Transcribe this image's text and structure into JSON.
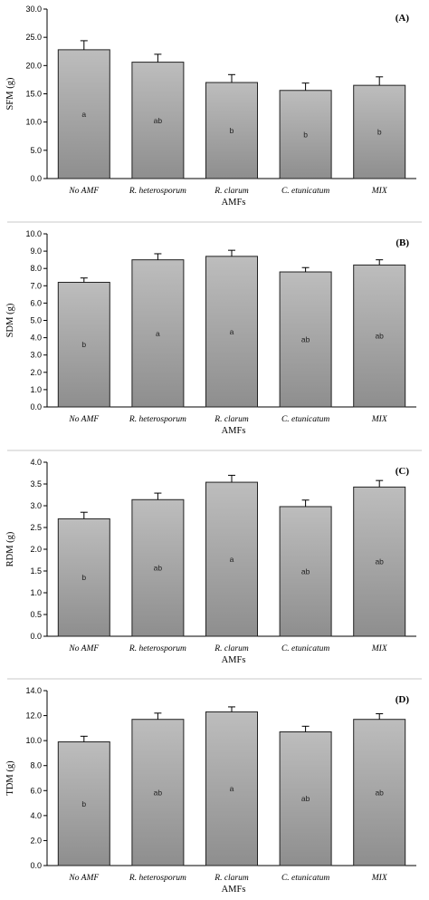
{
  "colors": {
    "bar_top": "#bdbdbd",
    "bar_bottom": "#8e8e8e",
    "axis": "#000000",
    "separator": "#c8c8c8"
  },
  "chart_data": [
    {
      "type": "bar",
      "panel_label": "(A)",
      "ylabel": "SFM (g)",
      "xlabel": "AMFs",
      "categories": [
        "No AMF",
        "R. heterosporum",
        "R. clarum",
        "C. etunicatum",
        "MIX"
      ],
      "values": [
        22.8,
        20.6,
        17.0,
        15.6,
        16.5
      ],
      "errors": [
        1.6,
        1.4,
        1.4,
        1.3,
        1.5
      ],
      "letters": [
        "a",
        "ab",
        "b",
        "b",
        "b"
      ],
      "ylim": [
        0,
        30
      ],
      "yticks": [
        "0.0",
        "5.0",
        "10.0",
        "15.0",
        "20.0",
        "25.0",
        "30.0"
      ],
      "grid": false
    },
    {
      "type": "bar",
      "panel_label": "(B)",
      "ylabel": "SDM (g)",
      "xlabel": "AMFs",
      "categories": [
        "No AMF",
        "R. heterosporum",
        "R. clarum",
        "C. etunicatum",
        "MIX"
      ],
      "values": [
        7.2,
        8.5,
        8.7,
        7.8,
        8.2
      ],
      "errors": [
        0.25,
        0.35,
        0.35,
        0.25,
        0.3
      ],
      "letters": [
        "b",
        "a",
        "a",
        "ab",
        "ab"
      ],
      "ylim": [
        0,
        10
      ],
      "yticks": [
        "0.0",
        "1.0",
        "2.0",
        "3.0",
        "4.0",
        "5.0",
        "6.0",
        "7.0",
        "8.0",
        "9.0",
        "10.0"
      ],
      "grid": false
    },
    {
      "type": "bar",
      "panel_label": "(C)",
      "ylabel": "RDM (g)",
      "xlabel": "AMFs",
      "categories": [
        "No AMF",
        "R. heterosporum",
        "R. clarum",
        "C. etunicatum",
        "MIX"
      ],
      "values": [
        2.7,
        3.14,
        3.54,
        2.98,
        3.43
      ],
      "errors": [
        0.15,
        0.15,
        0.16,
        0.15,
        0.15
      ],
      "letters": [
        "b",
        "ab",
        "a",
        "ab",
        "ab"
      ],
      "ylim": [
        0,
        4
      ],
      "yticks": [
        "0.0",
        "0.5",
        "1.0",
        "1.5",
        "2.0",
        "2.5",
        "3.0",
        "3.5",
        "4.0"
      ],
      "grid": false
    },
    {
      "type": "bar",
      "panel_label": "(D)",
      "ylabel": "TDM (g)",
      "xlabel": "AMFs",
      "categories": [
        "No AMF",
        "R. heterosporum",
        "R. clarum",
        "C. etunicatum",
        "MIX"
      ],
      "values": [
        9.9,
        11.7,
        12.3,
        10.7,
        11.7
      ],
      "errors": [
        0.45,
        0.5,
        0.4,
        0.45,
        0.45
      ],
      "letters": [
        "b",
        "ab",
        "a",
        "ab",
        "ab"
      ],
      "ylim": [
        0,
        14
      ],
      "yticks": [
        "0.0",
        "2.0",
        "4.0",
        "6.0",
        "8.0",
        "10.0",
        "12.0",
        "14.0"
      ],
      "grid": false
    }
  ]
}
